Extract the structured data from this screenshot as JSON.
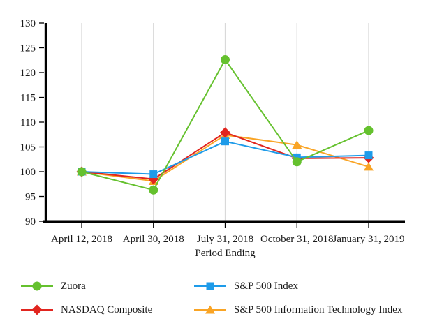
{
  "chart_data": {
    "type": "line",
    "title": "",
    "xlabel": "Period Ending",
    "ylabel": "",
    "ylim": [
      90,
      130
    ],
    "yticks": [
      130,
      125,
      120,
      115,
      110,
      105,
      100,
      95,
      90
    ],
    "categories": [
      "April 12, 2018",
      "April 30, 2018",
      "July 31, 2018",
      "October 31, 2018",
      "January 31, 2019"
    ],
    "grid": "vertical-gridlines-only",
    "gridline_color": "#d9d9d9",
    "axis_color": "#000000",
    "legend_position": "bottom",
    "series": [
      {
        "name": "Zuora",
        "marker": "circle",
        "color": "#65c12e",
        "values": [
          100,
          96.3,
          122.6,
          102.0,
          108.3
        ]
      },
      {
        "name": "S&P 500 Index",
        "marker": "square",
        "color": "#1e9be9",
        "values": [
          100,
          99.5,
          106.1,
          102.9,
          103.3
        ]
      },
      {
        "name": "NASDAQ Composite",
        "marker": "diamond",
        "color": "#e1251f",
        "values": [
          100,
          98.5,
          107.9,
          102.7,
          102.8
        ]
      },
      {
        "name": "S&P 500 Information Technology Index",
        "marker": "triangle",
        "color": "#f9a425",
        "values": [
          100,
          98.1,
          107.4,
          105.4,
          101.0
        ]
      }
    ]
  }
}
